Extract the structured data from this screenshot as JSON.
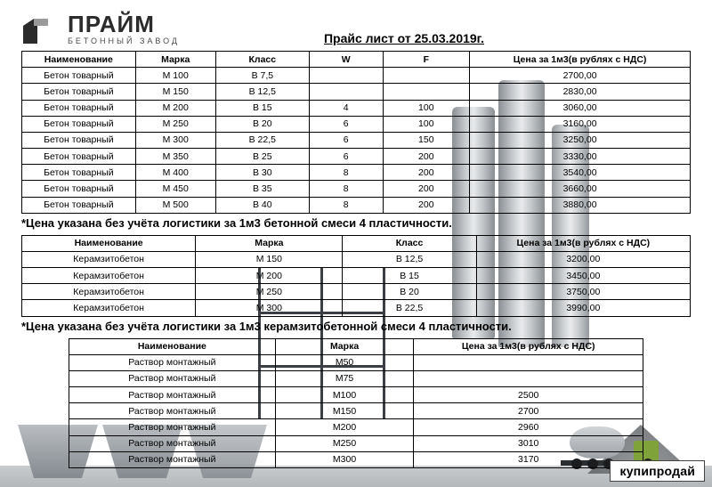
{
  "brand": {
    "name": "ПРАЙМ",
    "tagline": "БЕТОННЫЙ ЗАВОД",
    "logo_colors": {
      "dark": "#2b2b2b",
      "light": "#9a9a9a"
    }
  },
  "title": "Прайс лист от 25.03.2019г.",
  "table1": {
    "columns": [
      "Наименование",
      "Марка",
      "Класс",
      "W",
      "F",
      "Цена за 1м3(в рублях с НДС)"
    ],
    "rows": [
      [
        "Бетон товарный",
        "М 100",
        "В 7,5",
        "",
        "",
        "2700,00"
      ],
      [
        "Бетон товарный",
        "М 150",
        "В 12,5",
        "",
        "",
        "2830,00"
      ],
      [
        "Бетон товарный",
        "М 200",
        "В 15",
        "4",
        "100",
        "3060,00"
      ],
      [
        "Бетон товарный",
        "М 250",
        "В 20",
        "6",
        "100",
        "3160,00"
      ],
      [
        "Бетон товарный",
        "М 300",
        "В 22,5",
        "6",
        "150",
        "3250,00"
      ],
      [
        "Бетон товарный",
        "М 350",
        "В 25",
        "6",
        "200",
        "3330,00"
      ],
      [
        "Бетон товарный",
        "М 400",
        "В 30",
        "8",
        "200",
        "3540,00"
      ],
      [
        "Бетон товарный",
        "М 450",
        "В 35",
        "8",
        "200",
        "3660,00"
      ],
      [
        "Бетон товарный",
        "М 500",
        "В 40",
        "8",
        "200",
        "3880,00"
      ]
    ]
  },
  "note1": "*Цена указана без учёта логистики за 1м3 бетонной смеси 4 пластичности.",
  "table2": {
    "columns": [
      "Наименование",
      "Марка",
      "Класс",
      "Цена за 1м3(в рублях с НДС)"
    ],
    "rows": [
      [
        "Керамзитобетон",
        "М 150",
        "В 12,5",
        "3200,00"
      ],
      [
        "Керамзитобетон",
        "М 200",
        "В 15",
        "3450,00"
      ],
      [
        "Керамзитобетон",
        "М 250",
        "В 20",
        "3750,00"
      ],
      [
        "Керамзитобетон",
        "М 300",
        "В 22,5",
        "3990,00"
      ]
    ]
  },
  "note2": "*Цена указана без учёта логистики за 1м3 керамзитобетонной смеси 4 пластичности.",
  "table3": {
    "columns": [
      "Наименование",
      "Марка",
      "Цена за 1м3(в рублях с НДС)"
    ],
    "rows": [
      [
        "Раствор монтажный",
        "М50",
        ""
      ],
      [
        "Раствор монтажный",
        "М75",
        ""
      ],
      [
        "Раствор монтажный",
        "М100",
        "2500"
      ],
      [
        "Раствор монтажный",
        "М150",
        "2700"
      ],
      [
        "Раствор монтажный",
        "М200",
        "2960"
      ],
      [
        "Раствор монтажный",
        "М250",
        "3010"
      ],
      [
        "Раствор монтажный",
        "М300",
        "3170"
      ]
    ]
  },
  "watermark": "купипродай",
  "styling": {
    "page_bg": "#ffffff",
    "border_color": "#000000",
    "header_fontsize": 14,
    "cell_fontsize": 10.5,
    "brand_fontsize": 26,
    "note_fontsize": 13
  }
}
